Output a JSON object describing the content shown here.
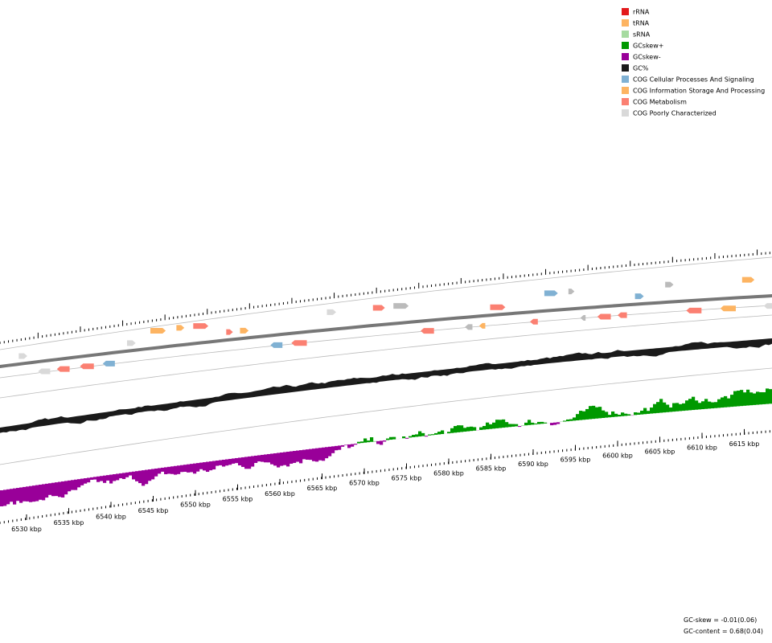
{
  "legend": [
    {
      "label": "rRNA",
      "color": "#e31a1c"
    },
    {
      "label": "tRNA",
      "color": "#fdb462"
    },
    {
      "label": "sRNA",
      "color": "#a6dba0"
    },
    {
      "label": "GCskew+",
      "color": "#009900"
    },
    {
      "label": "GCskew-",
      "color": "#990099"
    },
    {
      "label": "GC%",
      "color": "#1a1a1a"
    },
    {
      "label": "COG Cellular Processes And Signaling",
      "color": "#80b1d3"
    },
    {
      "label": "COG Information Storage And Processing",
      "color": "#fdb462"
    },
    {
      "label": "COG Metabolism",
      "color": "#fb8072"
    },
    {
      "label": "COG Poorly Characterized",
      "color": "#d9d9d9"
    }
  ],
  "scale_labels": [
    "6530 kbp",
    "6535 kbp",
    "6540 kbp",
    "6545 kbp",
    "6550 kbp",
    "6555 kbp",
    "6560 kbp",
    "6565 kbp",
    "6570 kbp",
    "6575 kbp",
    "6580 kbp",
    "6585 kbp",
    "6590 kbp",
    "6595 kbp",
    "6600 kbp",
    "6605 kbp",
    "6610 kbp",
    "6615 kbp"
  ],
  "footer": [
    "GC-skew = -0.01(0.06)",
    "GC-content = 0.68(0.04)"
  ]
}
